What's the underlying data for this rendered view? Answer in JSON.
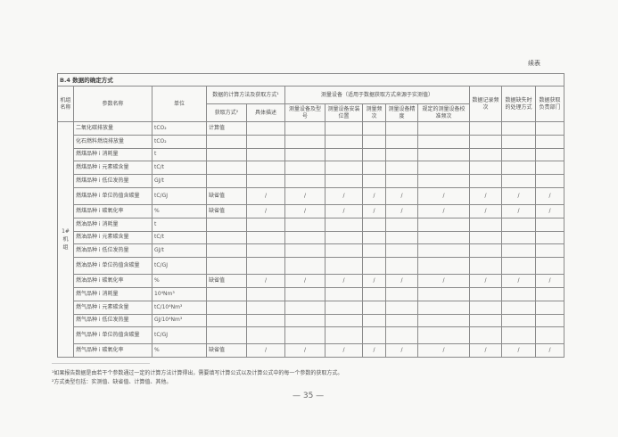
{
  "continued_label": "续表",
  "table": {
    "title": "B.4 数据的确定方式",
    "headers": {
      "unit_name": "机组名称",
      "param_name": "参数名称",
      "unit": "单位",
      "calc_method": "数据的计算方法及获取方式¹",
      "acq_method": "获取方式²",
      "description": "具体描述",
      "measure_equipment": "测量设备（适用于数据获取方式来源于实测值）",
      "equip_model": "测量设备及型号",
      "equip_location": "测量设备安装位置",
      "measure_freq": "测量频次",
      "equip_precision": "测量设备精度",
      "calib_freq": "规定的测量设备校准频次",
      "record_freq": "数据记录频次",
      "missing_handling": "数据缺失时的处理方式",
      "dept": "数据获取负责部门"
    },
    "group_label": [
      "1#",
      "机",
      "组"
    ],
    "rows": [
      {
        "param": "二氧化碳排放量",
        "unit": "tCO₂",
        "acq": "计算值",
        "slash": false
      },
      {
        "param": "化石燃料燃烧排放量",
        "unit": "tCO₂",
        "acq": "",
        "slash": false
      },
      {
        "param": "燃煤品种 i 消耗量",
        "unit": "t",
        "acq": "",
        "slash": false
      },
      {
        "param": "燃煤品种 i 元素碳含量",
        "unit": "tC/t",
        "acq": "",
        "slash": false
      },
      {
        "param": "燃煤品种 i 低位发热量",
        "unit": "GJ/t",
        "acq": "",
        "slash": false
      },
      {
        "param": "燃煤品种 i 单位热值含碳量",
        "unit": "tC/GJ",
        "acq": "缺省值",
        "slash": true
      },
      {
        "param": "燃煤品种 i 碳氧化率",
        "unit": "%",
        "acq": "缺省值",
        "slash": true
      },
      {
        "param": "燃油品种 i 消耗量",
        "unit": "t",
        "acq": "",
        "slash": false
      },
      {
        "param": "燃油品种 i 元素碳含量",
        "unit": "tC/t",
        "acq": "",
        "slash": false
      },
      {
        "param": "燃油品种 i 低位发热量",
        "unit": "GJ/t",
        "acq": "",
        "slash": false
      },
      {
        "param": "燃油品种 i 单位热值含碳量",
        "unit": "tC/GJ",
        "acq": "",
        "slash": false
      },
      {
        "param": "燃油品种 i 碳氧化率",
        "unit": "%",
        "acq": "缺省值",
        "slash": true
      },
      {
        "param": "燃气品种 i 消耗量",
        "unit": "10⁴Nm³",
        "acq": "",
        "slash": false
      },
      {
        "param": "燃气品种 i 元素碳含量",
        "unit": "tC/10⁴Nm³",
        "acq": "",
        "slash": false
      },
      {
        "param": "燃气品种 i 低位发热量",
        "unit": "GJ/10⁴Nm³",
        "acq": "",
        "slash": false
      },
      {
        "param": "燃气品种 i 单位热值含碳量",
        "unit": "tC/GJ",
        "acq": "",
        "slash": false
      },
      {
        "param": "燃气品种 i 碳氧化率",
        "unit": "%",
        "acq": "缺省值",
        "slash": true
      }
    ],
    "slash_mark": "/"
  },
  "footnotes": [
    "¹如果报告数据是由若干个参数通过一定的计算方法计算得出，需要填写计算公式以及计算公式中的每一个参数的获取方式。",
    "²方式类型包括：实测值、缺省值、计算值、其他。"
  ],
  "page_number": "— 35 —"
}
